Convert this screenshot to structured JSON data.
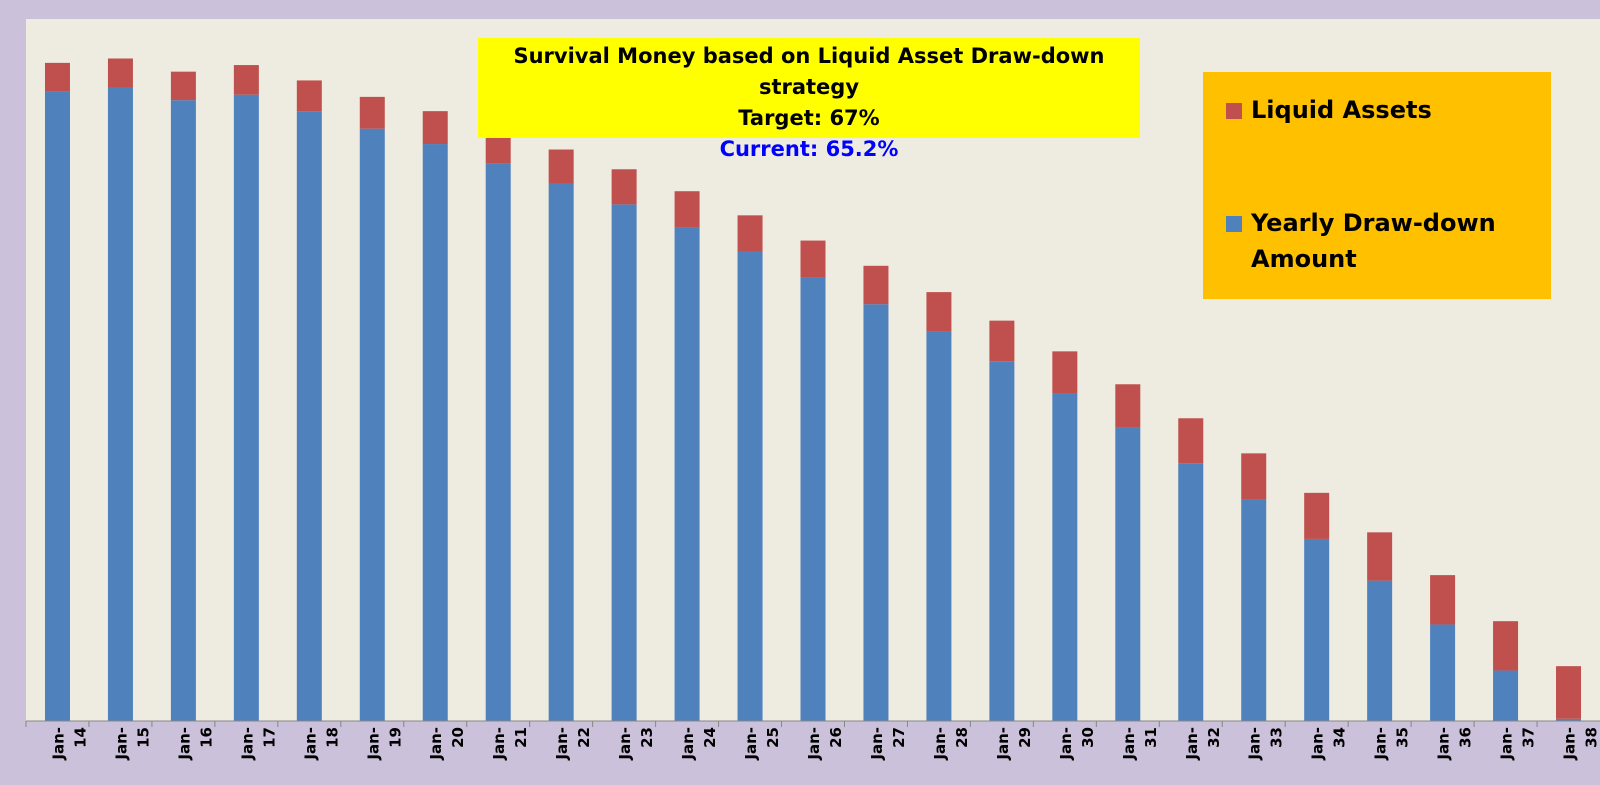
{
  "title": {
    "line1": "Survival Money based on Liquid Asset Draw-down strategy",
    "line2": "Target: 67%",
    "line3": "Current: 65.2%"
  },
  "legend": {
    "items": [
      {
        "label": "Liquid Assets",
        "color": "#c0504d"
      },
      {
        "label": "Yearly Draw-down Amount",
        "color": "#4f81bd"
      }
    ]
  },
  "colors": {
    "outer_background": "#ccc1da",
    "plot_background": "#eeece1",
    "title_box": "#ffff00",
    "legend_box": "#ffc000",
    "current_text": "#0000ff"
  },
  "chart_data": {
    "type": "bar",
    "stacked": true,
    "categories": [
      "Jan-14",
      "Jan-15",
      "Jan-16",
      "Jan-17",
      "Jan-18",
      "Jan-19",
      "Jan-20",
      "Jan-21",
      "Jan-22",
      "Jan-23",
      "Jan-24",
      "Jan-25",
      "Jan-26",
      "Jan-27",
      "Jan-28",
      "Jan-29",
      "Jan-30",
      "Jan-31",
      "Jan-32",
      "Jan-33",
      "Jan-34",
      "Jan-35",
      "Jan-36",
      "Jan-37",
      "Jan-38"
    ],
    "series": [
      {
        "name": "Yearly Draw-down Amount",
        "color": "#4f81bd",
        "values": [
          574,
          578,
          566,
          571,
          556,
          540,
          526,
          508,
          490,
          471,
          450,
          428,
          404,
          380,
          355,
          328,
          299,
          268,
          235,
          202,
          166,
          128,
          88,
          46,
          2
        ]
      },
      {
        "name": "Liquid Assets",
        "color": "#c0504d",
        "values": [
          26,
          26,
          26,
          27,
          28,
          29,
          30,
          31,
          31,
          32,
          33,
          33,
          34,
          35,
          36,
          37,
          38,
          39,
          41,
          42,
          42,
          44,
          45,
          45,
          48
        ]
      }
    ],
    "ylim": [
      0,
      640
    ],
    "y_axis_visible": false,
    "grid": false,
    "legend_position": "top-right"
  }
}
